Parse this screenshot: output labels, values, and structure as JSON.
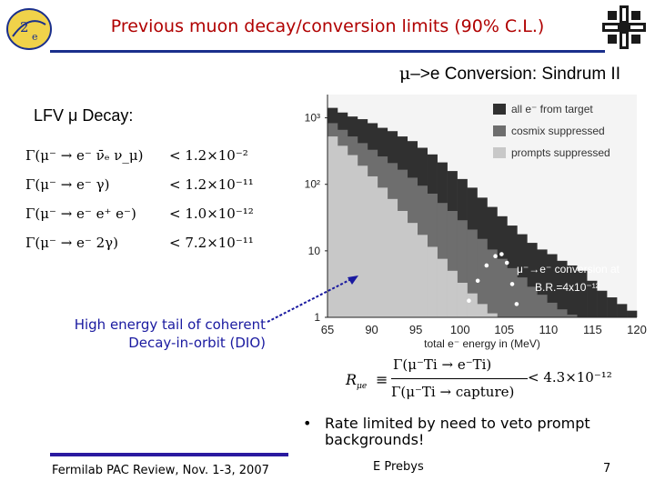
{
  "header": {
    "title": "Previous muon decay/conversion limits (90% C.L.)"
  },
  "conversion": {
    "heading_symbol": "μ",
    "heading_rest": "–>e Conversion: Sindrum II"
  },
  "lfv": {
    "label": "LFV μ Decay:",
    "rows": [
      {
        "process": "μ⁻ → e⁻ ν̄ₑ ν_μ",
        "limit": "< 1.2×10⁻²"
      },
      {
        "process": "μ⁻ → e⁻ γ",
        "limit": "< 1.2×10⁻¹¹"
      },
      {
        "process": "μ⁻ → e⁻ e⁺ e⁻",
        "limit": "< 1.0×10⁻¹²"
      },
      {
        "process": "μ⁻ → e⁻ 2γ",
        "limit": "< 7.2×10⁻¹¹"
      }
    ]
  },
  "annotation": {
    "line1": "High energy tail of coherent",
    "line2": "Decay-in-orbit (DIO)"
  },
  "formula": {
    "lhs": "R",
    "lhs_sub": "μe",
    "eq": "≡",
    "numerator": "Γ(μ⁻Ti → e⁻Ti)",
    "denominator": "Γ(μ⁻Ti → capture)",
    "limit": "< 4.3×10⁻¹²"
  },
  "bullet": {
    "text": "Rate limited by need to veto prompt backgrounds!"
  },
  "footer": {
    "left": "Fermilab PAC Review, Nov. 1-3, 2007",
    "center": "E Prebys",
    "page": "7"
  },
  "colors": {
    "title": "#b00000",
    "accent": "#1a2f8c",
    "annotation": "#1a1aa0"
  },
  "chart_data": {
    "type": "histogram",
    "title": "",
    "xlabel": "total e⁻ energy in (MeV)",
    "ylabel": "",
    "x_ticks": [
      "65",
      "90",
      "95",
      "100",
      "105",
      "110",
      "115",
      "120"
    ],
    "y_ticks": [
      "1",
      "10",
      "10²",
      "10³"
    ],
    "xlim": [
      85,
      120
    ],
    "ylog_decades": [
      0,
      3
    ],
    "legend": [
      "all e⁻ from target",
      "cosmix suppressed",
      "prompts suppressed"
    ],
    "annotation": "μ⁻→e⁻ conversion at B.R.=4x10⁻¹²",
    "series": [
      {
        "name": "all e⁻ from target",
        "color": "#303030",
        "log_counts": [
          3.15,
          3.08,
          3.02,
          2.98,
          2.92,
          2.85,
          2.8,
          2.72,
          2.65,
          2.55,
          2.45,
          2.33,
          2.2,
          2.08,
          1.95,
          1.8,
          1.66,
          1.52,
          1.38,
          1.25,
          1.12,
          1.02,
          0.95,
          0.85,
          0.78,
          0.7,
          0.55,
          0.4,
          0.3,
          0.2,
          0.1
        ]
      },
      {
        "name": "cosmix suppressed",
        "color": "#6e6e6e",
        "log_counts": [
          2.92,
          2.82,
          2.72,
          2.62,
          2.52,
          2.42,
          2.32,
          2.22,
          2.1,
          1.98,
          1.86,
          1.72,
          1.6,
          1.46,
          1.32,
          1.18,
          1.02,
          0.88,
          0.74,
          0.6,
          0.46,
          0.34,
          0.22,
          0.12,
          0.04
        ]
      },
      {
        "name": "prompts suppressed",
        "color": "#c8c8c8",
        "log_counts": [
          2.72,
          2.58,
          2.44,
          2.28,
          2.12,
          1.95,
          1.78,
          1.6,
          1.42,
          1.24,
          1.06,
          0.88,
          0.7,
          0.52,
          0.36,
          0.2,
          0.06
        ]
      }
    ]
  }
}
